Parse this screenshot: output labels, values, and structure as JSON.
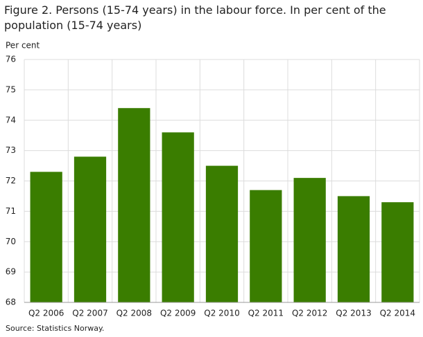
{
  "chart_data": {
    "type": "bar",
    "title": "Figure 2. Persons (15-74 years) in the labour force. In per cent of the population (15-74 years)",
    "ylabel": "Per cent",
    "source": "Source: Statistics Norway.",
    "categories": [
      "Q2 2006",
      "Q2 2007",
      "Q2 2008",
      "Q2 2009",
      "Q2 2010",
      "Q2 2011",
      "Q2 2012",
      "Q2 2013",
      "Q2 2014"
    ],
    "values": [
      72.3,
      72.8,
      74.4,
      73.6,
      72.5,
      71.7,
      72.1,
      71.5,
      71.3
    ],
    "color": "#3a7d00",
    "ylim": [
      68,
      76
    ],
    "yticks": [
      68,
      69,
      70,
      71,
      72,
      73,
      74,
      75,
      76
    ],
    "grid": true
  }
}
